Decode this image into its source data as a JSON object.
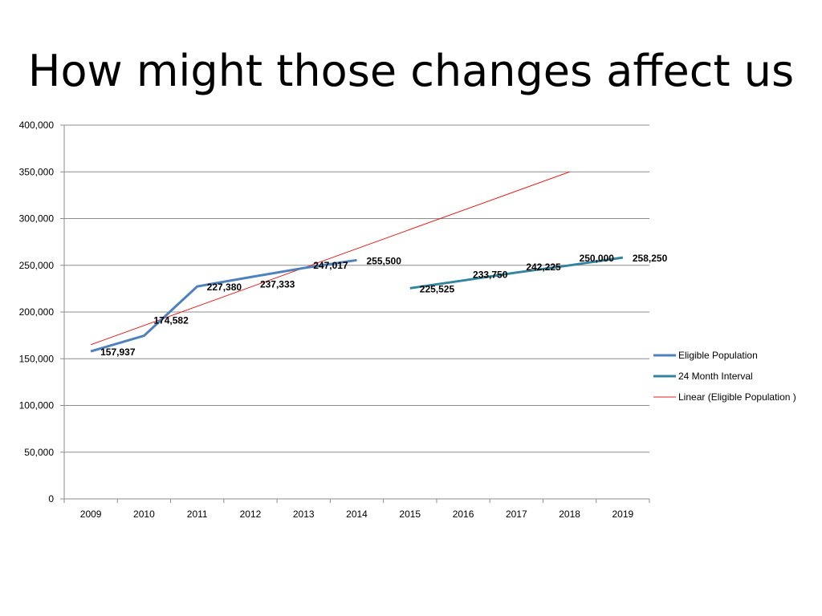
{
  "slide": {
    "title": "How might those changes affect us"
  },
  "chart_data": {
    "type": "line",
    "title": "",
    "xlabel": "",
    "ylabel": "",
    "categories": [
      "2009",
      "2010",
      "2011",
      "2012",
      "2013",
      "2014",
      "2015",
      "2016",
      "2017",
      "2018",
      "2019"
    ],
    "ylim": [
      0,
      400000
    ],
    "yticks": [
      0,
      50000,
      100000,
      150000,
      200000,
      250000,
      300000,
      350000,
      400000
    ],
    "ytick_labels": [
      "0",
      "50,000",
      "100,000",
      "150,000",
      "200,000",
      "250,000",
      "300,000",
      "350,000",
      "400,000"
    ],
    "grid": true,
    "legend_position": "right",
    "series": [
      {
        "name": "Eligible Population",
        "color": "#4F81BD",
        "values": [
          157937,
          174582,
          227380,
          237333,
          247017,
          255500,
          null,
          null,
          null,
          null,
          null
        ],
        "labels": [
          "157,937",
          "174,582",
          "227,380",
          "237,333",
          "247,017",
          "255,500",
          null,
          null,
          null,
          null,
          null
        ]
      },
      {
        "name": "24 Month Interval",
        "color": "#31859C",
        "values": [
          null,
          null,
          null,
          null,
          null,
          null,
          225525,
          233750,
          242225,
          250000,
          258250
        ],
        "labels": [
          null,
          null,
          null,
          null,
          null,
          null,
          "225,525",
          "233,750",
          "242,225",
          "250,000",
          "258,250"
        ]
      },
      {
        "name": "Linear (Eligible Population )",
        "color": "#E3201B",
        "trendline": true,
        "start": {
          "x": "2009",
          "y": 165000
        },
        "end": {
          "x": "2018",
          "y": 350000
        }
      }
    ]
  }
}
